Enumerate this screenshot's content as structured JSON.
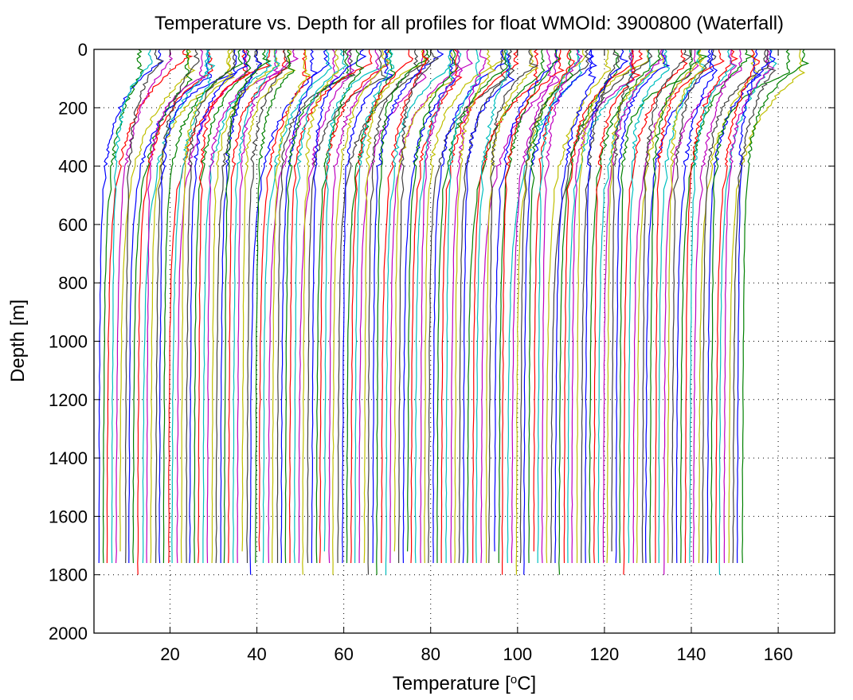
{
  "chart_data": {
    "type": "line",
    "title": "Temperature vs. Depth for all profiles for float WMOId: 3900800 (Waterfall)",
    "xlabel_main": "Temperature [",
    "xlabel_sup": "o",
    "xlabel_end": "C]",
    "ylabel": "Depth [m]",
    "xlim": [
      2.5,
      173
    ],
    "ylim": [
      0,
      2000
    ],
    "y_reversed": true,
    "grid": "dotted",
    "xticks": [
      20,
      40,
      60,
      80,
      100,
      120,
      140,
      160
    ],
    "yticks": [
      0,
      200,
      400,
      600,
      800,
      1000,
      1200,
      1400,
      1600,
      1800,
      2000
    ],
    "xtick_labels": [
      "20",
      "40",
      "60",
      "80",
      "100",
      "120",
      "140",
      "160"
    ],
    "ytick_labels": [
      "0",
      "200",
      "400",
      "600",
      "800",
      "1000",
      "1200",
      "1400",
      "1600",
      "1800",
      "2000"
    ],
    "waterfall": {
      "profile_count": 149,
      "offset_per_profile_degC": 1.0,
      "first_deep_temperature_degC": 3.5,
      "typical_surface_warming_degC": 8,
      "typical_max_depth_m": 1780,
      "color_cycle": [
        "#0000ff",
        "#008000",
        "#ff0000",
        "#00bfbf",
        "#bf00bf",
        "#bfbf00",
        "#404040"
      ]
    }
  }
}
